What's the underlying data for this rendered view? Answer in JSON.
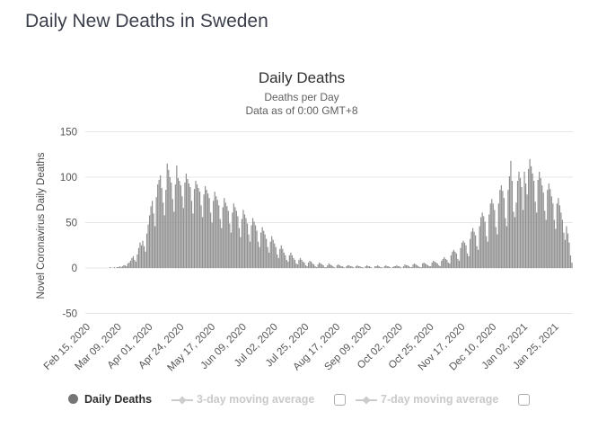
{
  "page": {
    "title": "Daily New Deaths in Sweden"
  },
  "chart": {
    "title": "Daily Deaths",
    "subtitle1": "Deaths per Day",
    "subtitle2": "Data as of 0:00 GMT+8",
    "y_axis_title": "Novel Coronavirus Daily Deaths"
  },
  "legend": {
    "daily_deaths": "Daily Deaths",
    "ma3": "3-day moving average",
    "ma7": "7-day moving average",
    "ma3_checked": false,
    "ma7_checked": false
  },
  "colors": {
    "bar": "#8f8f8f",
    "grid": "#e6e6e6",
    "legend_active_marker": "#757575",
    "legend_muted": "#cccccc",
    "title_text": "#3a3f4b",
    "axis_text": "#555555"
  },
  "chart_data": {
    "type": "bar",
    "title": "Daily Deaths",
    "subtitle": [
      "Deaths per Day",
      "Data as of 0:00 GMT+8"
    ],
    "xlabel": "",
    "ylabel": "Novel Coronavirus Daily Deaths",
    "ylim": [
      -50,
      150
    ],
    "yticks": [
      150,
      100,
      50,
      0,
      -50
    ],
    "grid": true,
    "legend_position": "bottom",
    "legend_entries": [
      "Daily Deaths",
      "3-day moving average",
      "7-day moving average"
    ],
    "series_name": "Daily Deaths",
    "x_start_date": "Feb 15, 2020",
    "x_end_date": "Feb 06, 2021",
    "x_tick_interval_days": 23,
    "x_tick_labels": [
      "Feb 15, 2020",
      "Mar 09, 2020",
      "Apr 01, 2020",
      "Apr 24, 2020",
      "May 17, 2020",
      "Jun 09, 2020",
      "Jul 02, 2020",
      "Jul 25, 2020",
      "Aug 17, 2020",
      "Sep 09, 2020",
      "Oct 02, 2020",
      "Oct 25, 2020",
      "Nov 17, 2020",
      "Dec 10, 2020",
      "Jan 02, 2021",
      "Jan 25, 2021"
    ],
    "values": [
      0,
      0,
      0,
      0,
      0,
      0,
      0,
      0,
      0,
      0,
      0,
      0,
      0,
      0,
      0,
      0,
      0,
      1,
      0,
      0,
      1,
      0,
      1,
      1,
      2,
      1,
      2,
      3,
      3,
      2,
      5,
      6,
      8,
      11,
      13,
      9,
      7,
      15,
      22,
      28,
      25,
      30,
      24,
      18,
      38,
      48,
      58,
      68,
      74,
      60,
      46,
      78,
      92,
      97,
      102,
      88,
      72,
      58,
      86,
      115,
      108,
      100,
      94,
      76,
      62,
      92,
      113,
      99,
      96,
      91,
      79,
      66,
      94,
      104,
      98,
      93,
      89,
      74,
      60,
      87,
      96,
      92,
      88,
      84,
      69,
      56,
      81,
      90,
      86,
      82,
      77,
      61,
      50,
      74,
      84,
      79,
      75,
      69,
      54,
      44,
      67,
      77,
      72,
      68,
      63,
      49,
      39,
      61,
      71,
      67,
      63,
      57,
      44,
      34,
      54,
      64,
      59,
      55,
      49,
      37,
      29,
      47,
      55,
      51,
      47,
      41,
      29,
      23,
      39,
      45,
      41,
      37,
      32,
      23,
      17,
      29,
      35,
      31,
      27,
      23,
      15,
      11,
      21,
      25,
      21,
      17,
      14,
      9,
      7,
      14,
      17,
      14,
      11,
      9,
      5,
      4,
      9,
      11,
      9,
      7,
      6,
      3,
      2,
      6,
      8,
      7,
      5,
      4,
      2,
      1,
      4,
      6,
      5,
      4,
      3,
      1,
      1,
      3,
      5,
      4,
      3,
      2,
      1,
      0,
      3,
      4,
      3,
      2,
      2,
      1,
      0,
      2,
      3,
      3,
      2,
      2,
      1,
      0,
      2,
      3,
      2,
      2,
      1,
      1,
      0,
      2,
      3,
      2,
      2,
      1,
      0,
      0,
      2,
      2,
      3,
      2,
      1,
      1,
      0,
      2,
      3,
      2,
      2,
      1,
      0,
      1,
      2,
      2,
      3,
      2,
      2,
      1,
      0,
      2,
      4,
      3,
      3,
      2,
      1,
      1,
      4,
      5,
      4,
      3,
      2,
      1,
      1,
      5,
      6,
      5,
      4,
      3,
      2,
      2,
      6,
      8,
      7,
      6,
      5,
      3,
      2,
      8,
      10,
      12,
      10,
      9,
      6,
      5,
      14,
      18,
      20,
      18,
      16,
      10,
      8,
      22,
      28,
      30,
      28,
      25,
      16,
      13,
      32,
      40,
      44,
      40,
      36,
      24,
      20,
      46,
      56,
      61,
      57,
      51,
      35,
      29,
      59,
      71,
      76,
      71,
      64,
      45,
      37,
      71,
      86,
      91,
      85,
      77,
      55,
      46,
      86,
      101,
      118,
      96,
      62,
      56,
      72,
      96,
      106,
      99,
      89,
      64,
      106,
      93,
      81,
      109,
      120,
      112,
      104,
      96,
      73,
      61,
      97,
      106,
      99,
      91,
      83,
      63,
      53,
      86,
      93,
      87,
      79,
      71,
      53,
      43,
      71,
      77,
      69,
      61,
      53,
      39,
      31,
      46,
      38,
      28,
      14,
      6
    ]
  }
}
